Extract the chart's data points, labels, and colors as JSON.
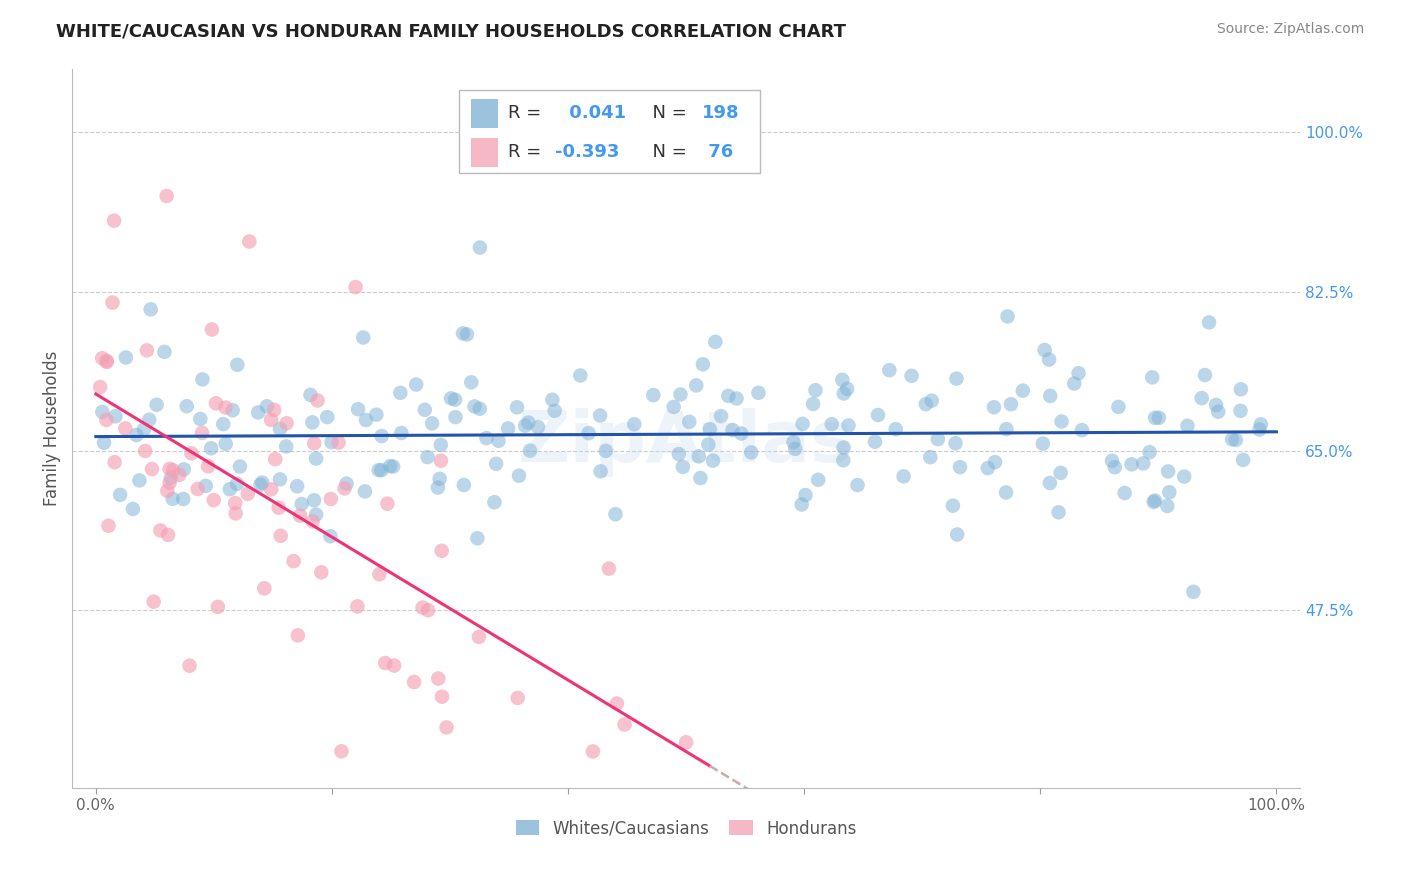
{
  "title": "WHITE/CAUCASIAN VS HONDURAN FAMILY HOUSEHOLDS CORRELATION CHART",
  "source": "Source: ZipAtlas.com",
  "ylabel": "Family Households",
  "y_tick_labels_right": [
    "100.0%",
    "82.5%",
    "65.0%",
    "47.5%"
  ],
  "y_tick_values": [
    1.0,
    0.825,
    0.65,
    0.475
  ],
  "ylim": [
    0.28,
    1.07
  ],
  "xlim": [
    -0.02,
    1.02
  ],
  "white_R": 0.041,
  "white_N": 198,
  "honduran_R": -0.393,
  "honduran_N": 76,
  "blue_color": "#7bafd4",
  "pink_color": "#f4a0b5",
  "blue_scatter_edge": "#5588bb",
  "pink_scatter_edge": "#e07090",
  "blue_line_color": "#2255aa",
  "pink_line_color": "#ee3377",
  "dashed_line_color": "#ccaaaa",
  "legend_label_white": "Whites/Caucasians",
  "legend_label_honduran": "Hondurans",
  "background_color": "#ffffff",
  "grid_color": "#cccccc",
  "title_color": "#222222",
  "source_color": "#888888",
  "right_label_color": "#4499ee",
  "r_text_color": "#4499ee",
  "n_text_color": "#4499ee",
  "label_text_color": "#333333",
  "seed": 42
}
